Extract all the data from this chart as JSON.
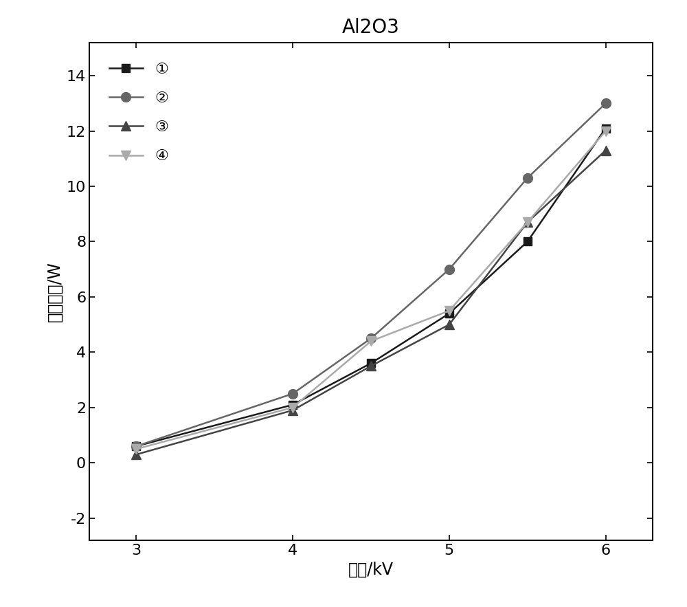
{
  "title": "Al2O3",
  "xlabel": "电压/kV",
  "ylabel": "放电功率/W",
  "x": [
    3,
    4,
    4.5,
    5,
    5.5,
    6
  ],
  "series": [
    {
      "label": "①",
      "y": [
        0.6,
        2.1,
        3.6,
        5.4,
        8.0,
        12.1
      ],
      "color": "#1a1a1a",
      "marker": "s",
      "markersize": 9,
      "linewidth": 1.8,
      "linestyle": "-"
    },
    {
      "label": "②",
      "y": [
        0.6,
        2.5,
        4.5,
        7.0,
        10.3,
        13.0
      ],
      "color": "#666666",
      "marker": "o",
      "markersize": 10,
      "linewidth": 1.8,
      "linestyle": "-"
    },
    {
      "label": "③",
      "y": [
        0.3,
        1.9,
        3.5,
        5.0,
        8.7,
        11.3
      ],
      "color": "#444444",
      "marker": "^",
      "markersize": 10,
      "linewidth": 1.8,
      "linestyle": "-"
    },
    {
      "label": "④",
      "y": [
        0.5,
        2.0,
        4.4,
        5.5,
        8.7,
        12.0
      ],
      "color": "#aaaaaa",
      "marker": "v",
      "markersize": 10,
      "linewidth": 1.8,
      "linestyle": "-"
    }
  ],
  "xlim": [
    2.7,
    6.3
  ],
  "ylim": [
    -2.8,
    15.2
  ],
  "xticks": [
    3,
    4,
    5,
    6
  ],
  "yticks": [
    -2,
    0,
    2,
    4,
    6,
    8,
    10,
    12,
    14
  ],
  "background_color": "#ffffff",
  "title_fontsize": 20,
  "label_fontsize": 17,
  "tick_fontsize": 16,
  "legend_fontsize": 16
}
